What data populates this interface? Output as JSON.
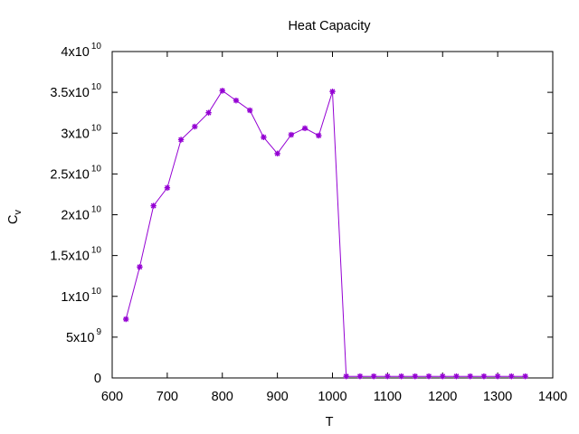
{
  "chart_data": {
    "type": "line",
    "title": "Heat Capacity",
    "xlabel": "T",
    "ylabel": {
      "main": "C",
      "subscript": "v"
    },
    "xlim": [
      600,
      1400
    ],
    "ylim": [
      0,
      40000000000
    ],
    "grid": false,
    "x_ticks": [
      {
        "value": 600,
        "label": "600"
      },
      {
        "value": 700,
        "label": "700"
      },
      {
        "value": 800,
        "label": "800"
      },
      {
        "value": 900,
        "label": "900"
      },
      {
        "value": 1000,
        "label": "1000"
      },
      {
        "value": 1100,
        "label": "1100"
      },
      {
        "value": 1200,
        "label": "1200"
      },
      {
        "value": 1300,
        "label": "1300"
      },
      {
        "value": 1400,
        "label": "1400"
      }
    ],
    "y_ticks": [
      {
        "value": 0,
        "mantissa": "0",
        "exp": ""
      },
      {
        "value": 5000000000,
        "mantissa": "5x10",
        "exp": "9"
      },
      {
        "value": 10000000000,
        "mantissa": "1x10",
        "exp": "10"
      },
      {
        "value": 15000000000,
        "mantissa": "1.5x10",
        "exp": "10"
      },
      {
        "value": 20000000000,
        "mantissa": "2x10",
        "exp": "10"
      },
      {
        "value": 25000000000,
        "mantissa": "2.5x10",
        "exp": "10"
      },
      {
        "value": 30000000000,
        "mantissa": "3x10",
        "exp": "10"
      },
      {
        "value": 35000000000,
        "mantissa": "3.5x10",
        "exp": "10"
      },
      {
        "value": 40000000000,
        "mantissa": "4x10",
        "exp": "10"
      }
    ],
    "series": [
      {
        "color": "#9400d3",
        "marker": "asterisk",
        "x": [
          625,
          650,
          675,
          700,
          725,
          750,
          775,
          800,
          825,
          850,
          875,
          900,
          925,
          950,
          975,
          1000,
          1025,
          1050,
          1075,
          1100,
          1125,
          1150,
          1175,
          1200,
          1225,
          1250,
          1275,
          1300,
          1325,
          1350
        ],
        "y": [
          7200000000,
          13600000000,
          21100000000,
          23300000000,
          29200000000,
          30800000000,
          32500000000,
          35200000000,
          34000000000,
          32800000000,
          29500000000,
          27500000000,
          29800000000,
          30600000000,
          29700000000,
          35100000000,
          200000000,
          200000000,
          200000000,
          200000000,
          200000000,
          200000000,
          200000000,
          200000000,
          200000000,
          200000000,
          200000000,
          200000000,
          200000000,
          200000000
        ]
      }
    ]
  }
}
